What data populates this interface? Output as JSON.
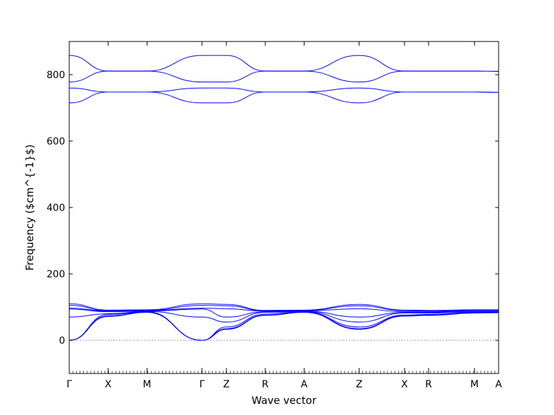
{
  "chart_data": {
    "type": "line",
    "title": "",
    "xlabel": "Wave vector",
    "ylabel": "Frequency ($cm^{-1}$)",
    "ylim": [
      -100,
      900
    ],
    "y_ticks": [
      0,
      200,
      400,
      600,
      800
    ],
    "grid": false,
    "line_color": "#0000ff",
    "zero_line_color": "#0000ff",
    "high_symmetry_points": [
      {
        "label": "Γ",
        "x": 0
      },
      {
        "label": "X",
        "x": 0.5
      },
      {
        "label": "M",
        "x": 1.0
      },
      {
        "label": "Γ",
        "x": 1.707
      },
      {
        "label": "Z",
        "x": 2.02
      },
      {
        "label": "R",
        "x": 2.52
      },
      {
        "label": "A",
        "x": 3.02
      },
      {
        "label": "Z",
        "x": 3.727
      },
      {
        "label": "X",
        "x": 4.31
      },
      {
        "label": "R",
        "x": 4.62
      },
      {
        "label": "M",
        "x": 5.21
      },
      {
        "label": "A",
        "x": 5.52
      }
    ],
    "series": [
      {
        "values": [
          [
            0,
            858
          ],
          [
            0.5,
            811
          ],
          [
            1.0,
            811
          ],
          [
            1.707,
            858
          ],
          [
            2.02,
            858
          ],
          [
            2.52,
            811
          ],
          [
            3.02,
            811
          ],
          [
            3.727,
            858
          ],
          [
            4.31,
            811
          ],
          [
            4.62,
            811
          ],
          [
            5.21,
            811
          ],
          [
            5.52,
            810
          ]
        ]
      },
      {
        "values": [
          [
            0,
            778
          ],
          [
            0.5,
            811
          ],
          [
            1.0,
            811
          ],
          [
            1.707,
            778
          ],
          [
            2.02,
            778
          ],
          [
            2.52,
            811
          ],
          [
            3.02,
            811
          ],
          [
            3.727,
            778
          ],
          [
            4.31,
            811
          ],
          [
            4.62,
            811
          ],
          [
            5.21,
            811
          ],
          [
            5.52,
            810
          ]
        ]
      },
      {
        "values": [
          [
            0,
            760
          ],
          [
            0.5,
            748
          ],
          [
            1.0,
            748
          ],
          [
            1.707,
            760
          ],
          [
            2.02,
            760
          ],
          [
            2.52,
            748
          ],
          [
            3.02,
            748
          ],
          [
            3.727,
            760
          ],
          [
            4.31,
            748
          ],
          [
            4.62,
            748
          ],
          [
            5.21,
            748
          ],
          [
            5.52,
            747
          ]
        ]
      },
      {
        "values": [
          [
            0,
            715
          ],
          [
            0.5,
            748
          ],
          [
            1.0,
            748
          ],
          [
            1.707,
            715
          ],
          [
            2.02,
            715
          ],
          [
            2.52,
            748
          ],
          [
            3.02,
            748
          ],
          [
            3.727,
            715
          ],
          [
            4.31,
            748
          ],
          [
            4.62,
            748
          ],
          [
            5.21,
            748
          ],
          [
            5.52,
            747
          ]
        ]
      },
      {
        "values": [
          [
            0,
            110
          ],
          [
            0.5,
            91
          ],
          [
            1.0,
            92
          ],
          [
            1.707,
            110
          ],
          [
            2.02,
            108
          ],
          [
            2.52,
            90
          ],
          [
            3.02,
            91
          ],
          [
            3.727,
            108
          ],
          [
            4.31,
            91
          ],
          [
            4.62,
            90
          ],
          [
            5.21,
            92
          ],
          [
            5.52,
            92
          ]
        ]
      },
      {
        "values": [
          [
            0,
            105
          ],
          [
            0.5,
            89
          ],
          [
            1.0,
            90
          ],
          [
            1.707,
            105
          ],
          [
            2.02,
            104
          ],
          [
            2.52,
            89
          ],
          [
            3.02,
            90
          ],
          [
            3.727,
            104
          ],
          [
            4.31,
            89
          ],
          [
            4.62,
            88
          ],
          [
            5.21,
            90
          ],
          [
            5.52,
            90
          ]
        ]
      },
      {
        "values": [
          [
            0,
            97
          ],
          [
            0.5,
            88
          ],
          [
            1.0,
            89
          ],
          [
            1.707,
            97
          ],
          [
            2.02,
            95
          ],
          [
            2.52,
            88
          ],
          [
            3.02,
            89
          ],
          [
            3.727,
            95
          ],
          [
            4.31,
            86
          ],
          [
            4.62,
            86
          ],
          [
            5.21,
            88
          ],
          [
            5.52,
            88
          ]
        ]
      },
      {
        "values": [
          [
            0,
            94
          ],
          [
            0.5,
            86
          ],
          [
            1.0,
            88
          ],
          [
            1.707,
            94
          ],
          [
            2.02,
            70
          ],
          [
            2.52,
            86
          ],
          [
            3.02,
            88
          ],
          [
            3.727,
            70
          ],
          [
            4.31,
            84
          ],
          [
            4.62,
            84
          ],
          [
            5.21,
            86
          ],
          [
            5.52,
            86
          ]
        ]
      },
      {
        "values": [
          [
            0,
            70
          ],
          [
            0.5,
            80
          ],
          [
            1.0,
            87
          ],
          [
            1.707,
            70
          ],
          [
            2.02,
            55
          ],
          [
            2.52,
            84
          ],
          [
            3.02,
            87
          ],
          [
            3.727,
            55
          ],
          [
            4.31,
            82
          ],
          [
            4.62,
            82
          ],
          [
            5.21,
            86
          ],
          [
            5.52,
            86
          ]
        ]
      },
      {
        "values": [
          [
            0,
            0
          ],
          [
            0.5,
            78
          ],
          [
            1.0,
            86
          ],
          [
            1.707,
            0
          ],
          [
            2.02,
            40
          ],
          [
            2.52,
            79
          ],
          [
            3.02,
            86
          ],
          [
            3.727,
            40
          ],
          [
            4.31,
            76
          ],
          [
            4.62,
            78
          ],
          [
            5.21,
            84
          ],
          [
            5.52,
            85
          ]
        ]
      },
      {
        "values": [
          [
            0,
            0
          ],
          [
            0.5,
            74
          ],
          [
            1.0,
            85
          ],
          [
            1.707,
            0
          ],
          [
            2.02,
            35
          ],
          [
            2.52,
            76
          ],
          [
            3.02,
            85
          ],
          [
            3.727,
            35
          ],
          [
            4.31,
            74
          ],
          [
            4.62,
            76
          ],
          [
            5.21,
            83
          ],
          [
            5.52,
            84
          ]
        ]
      },
      {
        "values": [
          [
            0,
            0
          ],
          [
            0.5,
            72
          ],
          [
            1.0,
            84
          ],
          [
            1.707,
            0
          ],
          [
            2.02,
            33
          ],
          [
            2.52,
            75
          ],
          [
            3.02,
            84
          ],
          [
            3.727,
            33
          ],
          [
            4.31,
            73
          ],
          [
            4.62,
            75
          ],
          [
            5.21,
            82
          ],
          [
            5.52,
            83
          ]
        ]
      }
    ]
  }
}
